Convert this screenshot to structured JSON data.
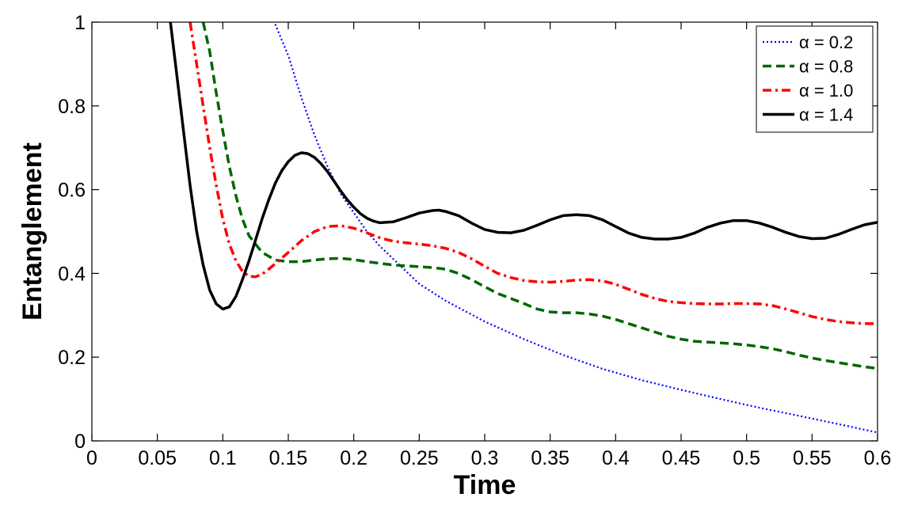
{
  "chart_data": {
    "type": "line",
    "title": "",
    "xlabel": "Time",
    "ylabel": "Entanglement",
    "xlim": [
      0,
      0.6
    ],
    "ylim": [
      0,
      1
    ],
    "grid": false,
    "legend_position": "top-right",
    "x_ticks": [
      "0",
      "0.05",
      "0.1",
      "0.15",
      "0.2",
      "0.25",
      "0.3",
      "0.35",
      "0.4",
      "0.45",
      "0.5",
      "0.55",
      "0.6"
    ],
    "y_ticks": [
      "0",
      "0.2",
      "0.4",
      "0.6",
      "0.8",
      "1"
    ],
    "series": [
      {
        "name": "α = 0.2",
        "color": "#0000ff",
        "dash": "dotted",
        "x": [
          0.14,
          0.15,
          0.16,
          0.17,
          0.18,
          0.19,
          0.2,
          0.21,
          0.22,
          0.23,
          0.24,
          0.25,
          0.27,
          0.3,
          0.33,
          0.36,
          0.39,
          0.42,
          0.45,
          0.48,
          0.51,
          0.54,
          0.57,
          0.6
        ],
        "values": [
          0.995,
          0.92,
          0.82,
          0.73,
          0.655,
          0.59,
          0.545,
          0.5,
          0.465,
          0.435,
          0.405,
          0.375,
          0.335,
          0.285,
          0.243,
          0.205,
          0.172,
          0.145,
          0.122,
          0.1,
          0.079,
          0.06,
          0.04,
          0.02
        ]
      },
      {
        "name": "α = 0.8",
        "color": "#006600",
        "dash": "dashed",
        "x": [
          0.085,
          0.09,
          0.095,
          0.1,
          0.105,
          0.11,
          0.115,
          0.12,
          0.13,
          0.14,
          0.15,
          0.16,
          0.17,
          0.18,
          0.19,
          0.2,
          0.21,
          0.22,
          0.23,
          0.24,
          0.25,
          0.26,
          0.27,
          0.28,
          0.29,
          0.3,
          0.31,
          0.32,
          0.33,
          0.34,
          0.35,
          0.36,
          0.37,
          0.38,
          0.39,
          0.4,
          0.41,
          0.42,
          0.43,
          0.44,
          0.45,
          0.46,
          0.47,
          0.48,
          0.49,
          0.5,
          0.51,
          0.52,
          0.53,
          0.54,
          0.55,
          0.56,
          0.57,
          0.58,
          0.59,
          0.6
        ],
        "values": [
          1.0,
          0.93,
          0.83,
          0.74,
          0.655,
          0.585,
          0.53,
          0.49,
          0.45,
          0.432,
          0.428,
          0.428,
          0.432,
          0.435,
          0.436,
          0.433,
          0.428,
          0.424,
          0.42,
          0.418,
          0.416,
          0.414,
          0.41,
          0.4,
          0.385,
          0.368,
          0.352,
          0.34,
          0.328,
          0.315,
          0.308,
          0.306,
          0.306,
          0.303,
          0.298,
          0.29,
          0.28,
          0.27,
          0.26,
          0.25,
          0.243,
          0.238,
          0.236,
          0.234,
          0.232,
          0.229,
          0.225,
          0.22,
          0.213,
          0.205,
          0.198,
          0.192,
          0.187,
          0.182,
          0.177,
          0.173
        ]
      },
      {
        "name": "α = 1.0",
        "color": "#ff0000",
        "dash": "dashdot",
        "x": [
          0.075,
          0.08,
          0.085,
          0.09,
          0.095,
          0.1,
          0.105,
          0.11,
          0.115,
          0.12,
          0.125,
          0.13,
          0.135,
          0.14,
          0.15,
          0.16,
          0.17,
          0.18,
          0.19,
          0.2,
          0.21,
          0.22,
          0.23,
          0.24,
          0.25,
          0.26,
          0.27,
          0.28,
          0.29,
          0.3,
          0.31,
          0.32,
          0.33,
          0.34,
          0.35,
          0.36,
          0.37,
          0.38,
          0.39,
          0.4,
          0.41,
          0.42,
          0.43,
          0.44,
          0.45,
          0.46,
          0.47,
          0.48,
          0.49,
          0.5,
          0.51,
          0.52,
          0.53,
          0.54,
          0.55,
          0.56,
          0.57,
          0.58,
          0.59,
          0.6
        ],
        "values": [
          1.0,
          0.9,
          0.8,
          0.7,
          0.61,
          0.53,
          0.47,
          0.43,
          0.405,
          0.393,
          0.392,
          0.398,
          0.41,
          0.423,
          0.45,
          0.478,
          0.5,
          0.512,
          0.514,
          0.508,
          0.497,
          0.485,
          0.477,
          0.473,
          0.47,
          0.466,
          0.46,
          0.45,
          0.435,
          0.417,
          0.4,
          0.39,
          0.383,
          0.38,
          0.379,
          0.381,
          0.384,
          0.385,
          0.382,
          0.374,
          0.362,
          0.35,
          0.34,
          0.333,
          0.33,
          0.328,
          0.327,
          0.327,
          0.328,
          0.328,
          0.327,
          0.323,
          0.315,
          0.306,
          0.297,
          0.29,
          0.285,
          0.282,
          0.28,
          0.28
        ]
      },
      {
        "name": "α = 1.4",
        "color": "#000000",
        "dash": "solid",
        "x": [
          0.06,
          0.065,
          0.07,
          0.075,
          0.08,
          0.085,
          0.09,
          0.095,
          0.1,
          0.105,
          0.11,
          0.115,
          0.12,
          0.125,
          0.13,
          0.135,
          0.14,
          0.145,
          0.15,
          0.155,
          0.16,
          0.165,
          0.17,
          0.175,
          0.18,
          0.185,
          0.19,
          0.195,
          0.2,
          0.205,
          0.21,
          0.215,
          0.22,
          0.23,
          0.24,
          0.25,
          0.26,
          0.265,
          0.27,
          0.28,
          0.29,
          0.3,
          0.31,
          0.32,
          0.33,
          0.34,
          0.35,
          0.36,
          0.37,
          0.38,
          0.39,
          0.4,
          0.41,
          0.42,
          0.43,
          0.44,
          0.45,
          0.46,
          0.47,
          0.48,
          0.49,
          0.5,
          0.51,
          0.52,
          0.53,
          0.54,
          0.55,
          0.56,
          0.57,
          0.58,
          0.59,
          0.6
        ],
        "values": [
          1.0,
          0.87,
          0.74,
          0.61,
          0.5,
          0.42,
          0.36,
          0.327,
          0.315,
          0.32,
          0.345,
          0.385,
          0.43,
          0.48,
          0.53,
          0.575,
          0.615,
          0.645,
          0.667,
          0.682,
          0.688,
          0.686,
          0.677,
          0.662,
          0.643,
          0.62,
          0.597,
          0.576,
          0.558,
          0.543,
          0.532,
          0.525,
          0.521,
          0.523,
          0.533,
          0.544,
          0.55,
          0.551,
          0.548,
          0.538,
          0.52,
          0.505,
          0.498,
          0.497,
          0.503,
          0.515,
          0.528,
          0.538,
          0.54,
          0.538,
          0.528,
          0.512,
          0.496,
          0.486,
          0.482,
          0.482,
          0.486,
          0.496,
          0.51,
          0.52,
          0.526,
          0.526,
          0.52,
          0.51,
          0.498,
          0.488,
          0.483,
          0.484,
          0.493,
          0.505,
          0.516,
          0.522
        ]
      }
    ]
  }
}
